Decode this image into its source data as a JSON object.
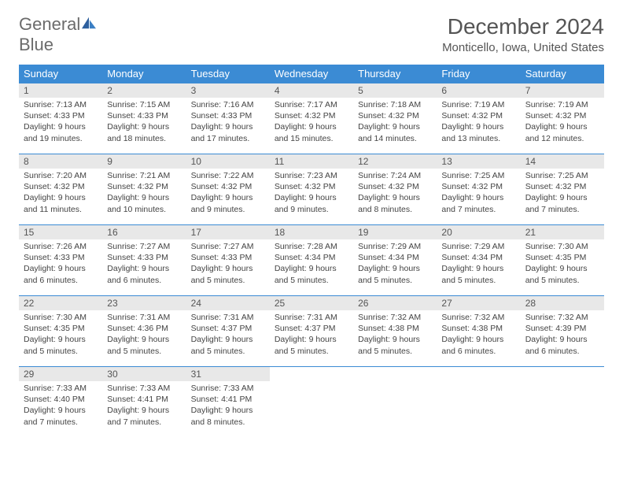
{
  "logo": {
    "text_gray": "General",
    "text_blue": "Blue"
  },
  "title": "December 2024",
  "location": "Monticello, Iowa, United States",
  "colors": {
    "header_bg": "#3b8bd4",
    "header_text": "#ffffff",
    "daynum_bg": "#e8e8e8",
    "border": "#3b8bd4",
    "logo_gray": "#6b6b6b",
    "logo_blue": "#3b7fc4"
  },
  "day_headers": [
    "Sunday",
    "Monday",
    "Tuesday",
    "Wednesday",
    "Thursday",
    "Friday",
    "Saturday"
  ],
  "weeks": [
    [
      {
        "n": "1",
        "sunrise": "7:13 AM",
        "sunset": "4:33 PM",
        "dl": "9 hours and 19 minutes."
      },
      {
        "n": "2",
        "sunrise": "7:15 AM",
        "sunset": "4:33 PM",
        "dl": "9 hours and 18 minutes."
      },
      {
        "n": "3",
        "sunrise": "7:16 AM",
        "sunset": "4:33 PM",
        "dl": "9 hours and 17 minutes."
      },
      {
        "n": "4",
        "sunrise": "7:17 AM",
        "sunset": "4:32 PM",
        "dl": "9 hours and 15 minutes."
      },
      {
        "n": "5",
        "sunrise": "7:18 AM",
        "sunset": "4:32 PM",
        "dl": "9 hours and 14 minutes."
      },
      {
        "n": "6",
        "sunrise": "7:19 AM",
        "sunset": "4:32 PM",
        "dl": "9 hours and 13 minutes."
      },
      {
        "n": "7",
        "sunrise": "7:19 AM",
        "sunset": "4:32 PM",
        "dl": "9 hours and 12 minutes."
      }
    ],
    [
      {
        "n": "8",
        "sunrise": "7:20 AM",
        "sunset": "4:32 PM",
        "dl": "9 hours and 11 minutes."
      },
      {
        "n": "9",
        "sunrise": "7:21 AM",
        "sunset": "4:32 PM",
        "dl": "9 hours and 10 minutes."
      },
      {
        "n": "10",
        "sunrise": "7:22 AM",
        "sunset": "4:32 PM",
        "dl": "9 hours and 9 minutes."
      },
      {
        "n": "11",
        "sunrise": "7:23 AM",
        "sunset": "4:32 PM",
        "dl": "9 hours and 9 minutes."
      },
      {
        "n": "12",
        "sunrise": "7:24 AM",
        "sunset": "4:32 PM",
        "dl": "9 hours and 8 minutes."
      },
      {
        "n": "13",
        "sunrise": "7:25 AM",
        "sunset": "4:32 PM",
        "dl": "9 hours and 7 minutes."
      },
      {
        "n": "14",
        "sunrise": "7:25 AM",
        "sunset": "4:32 PM",
        "dl": "9 hours and 7 minutes."
      }
    ],
    [
      {
        "n": "15",
        "sunrise": "7:26 AM",
        "sunset": "4:33 PM",
        "dl": "9 hours and 6 minutes."
      },
      {
        "n": "16",
        "sunrise": "7:27 AM",
        "sunset": "4:33 PM",
        "dl": "9 hours and 6 minutes."
      },
      {
        "n": "17",
        "sunrise": "7:27 AM",
        "sunset": "4:33 PM",
        "dl": "9 hours and 5 minutes."
      },
      {
        "n": "18",
        "sunrise": "7:28 AM",
        "sunset": "4:34 PM",
        "dl": "9 hours and 5 minutes."
      },
      {
        "n": "19",
        "sunrise": "7:29 AM",
        "sunset": "4:34 PM",
        "dl": "9 hours and 5 minutes."
      },
      {
        "n": "20",
        "sunrise": "7:29 AM",
        "sunset": "4:34 PM",
        "dl": "9 hours and 5 minutes."
      },
      {
        "n": "21",
        "sunrise": "7:30 AM",
        "sunset": "4:35 PM",
        "dl": "9 hours and 5 minutes."
      }
    ],
    [
      {
        "n": "22",
        "sunrise": "7:30 AM",
        "sunset": "4:35 PM",
        "dl": "9 hours and 5 minutes."
      },
      {
        "n": "23",
        "sunrise": "7:31 AM",
        "sunset": "4:36 PM",
        "dl": "9 hours and 5 minutes."
      },
      {
        "n": "24",
        "sunrise": "7:31 AM",
        "sunset": "4:37 PM",
        "dl": "9 hours and 5 minutes."
      },
      {
        "n": "25",
        "sunrise": "7:31 AM",
        "sunset": "4:37 PM",
        "dl": "9 hours and 5 minutes."
      },
      {
        "n": "26",
        "sunrise": "7:32 AM",
        "sunset": "4:38 PM",
        "dl": "9 hours and 5 minutes."
      },
      {
        "n": "27",
        "sunrise": "7:32 AM",
        "sunset": "4:38 PM",
        "dl": "9 hours and 6 minutes."
      },
      {
        "n": "28",
        "sunrise": "7:32 AM",
        "sunset": "4:39 PM",
        "dl": "9 hours and 6 minutes."
      }
    ],
    [
      {
        "n": "29",
        "sunrise": "7:33 AM",
        "sunset": "4:40 PM",
        "dl": "9 hours and 7 minutes."
      },
      {
        "n": "30",
        "sunrise": "7:33 AM",
        "sunset": "4:41 PM",
        "dl": "9 hours and 7 minutes."
      },
      {
        "n": "31",
        "sunrise": "7:33 AM",
        "sunset": "4:41 PM",
        "dl": "9 hours and 8 minutes."
      },
      null,
      null,
      null,
      null
    ]
  ],
  "labels": {
    "sunrise": "Sunrise:",
    "sunset": "Sunset:",
    "daylight": "Daylight:"
  }
}
